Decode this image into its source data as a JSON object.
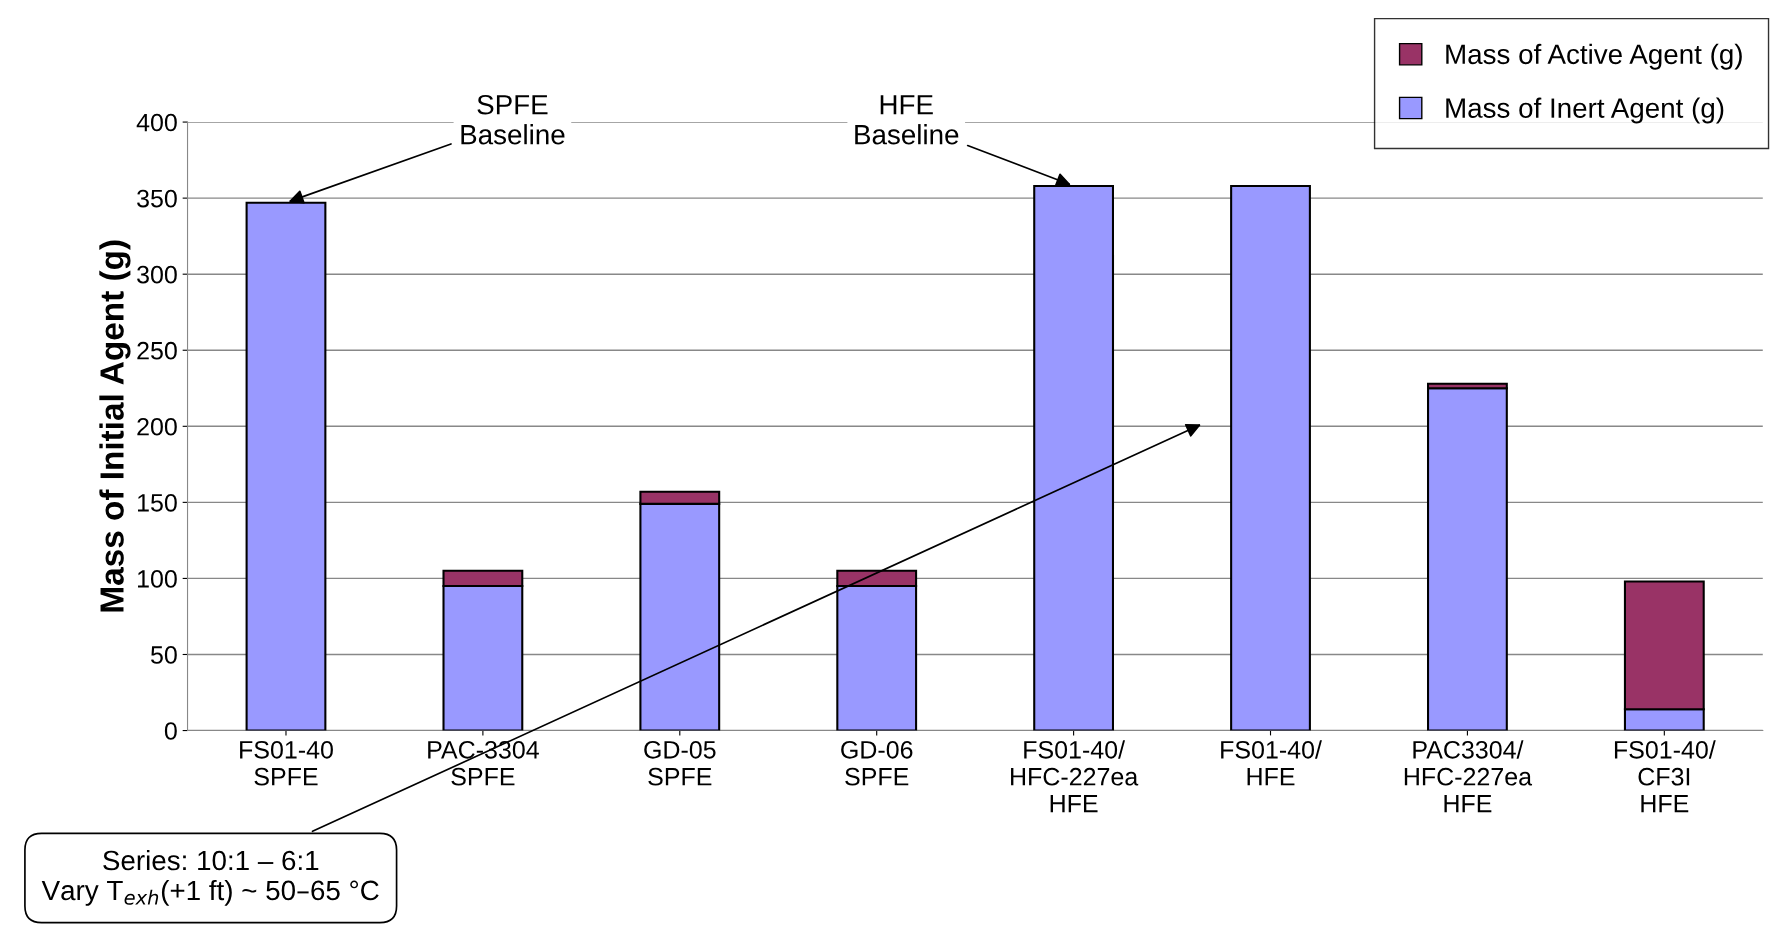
{
  "chart_data": {
    "type": "bar",
    "stacked": true,
    "ylabel": "Mass of Initial Agent (g)",
    "categories": [
      "FS01-40\nSPFE",
      "PAC-3304\nSPFE",
      "GD-05\nSPFE",
      "GD-06\nSPFE",
      "FS01-40/\nHFC-227ea\nHFE",
      "FS01-40/\nHFE",
      "PAC3304/\nHFC-227ea\nHFE",
      "FS01-40/\nCF3I\nHFE"
    ],
    "series": [
      {
        "name": "Mass of Inert Agent (g)",
        "color": "#9999ff",
        "values": [
          347,
          95,
          149,
          95,
          358,
          358,
          225,
          14
        ]
      },
      {
        "name": "Mass of Active Agent (g)",
        "color": "#993366",
        "values": [
          null,
          10,
          8,
          10,
          null,
          null,
          3,
          84
        ]
      }
    ],
    "ylim": [
      0,
      400
    ],
    "yticks": [
      0,
      50,
      100,
      150,
      200,
      250,
      300,
      350,
      400
    ],
    "grid": "y",
    "legend": "top right",
    "annotations": [
      {
        "text": "SPFE\nBaseline",
        "x": "FS01-40\nSPFE",
        "y": 347
      },
      {
        "text": "HFE\nBaseline",
        "x": "FS01-40/\nHFC-227ea\nHFE",
        "y": 358
      },
      "Series: 10:1 – 6:1\nVary T$_{exh}$(+1 ft) ~ 50–65 °C"
    ]
  }
}
